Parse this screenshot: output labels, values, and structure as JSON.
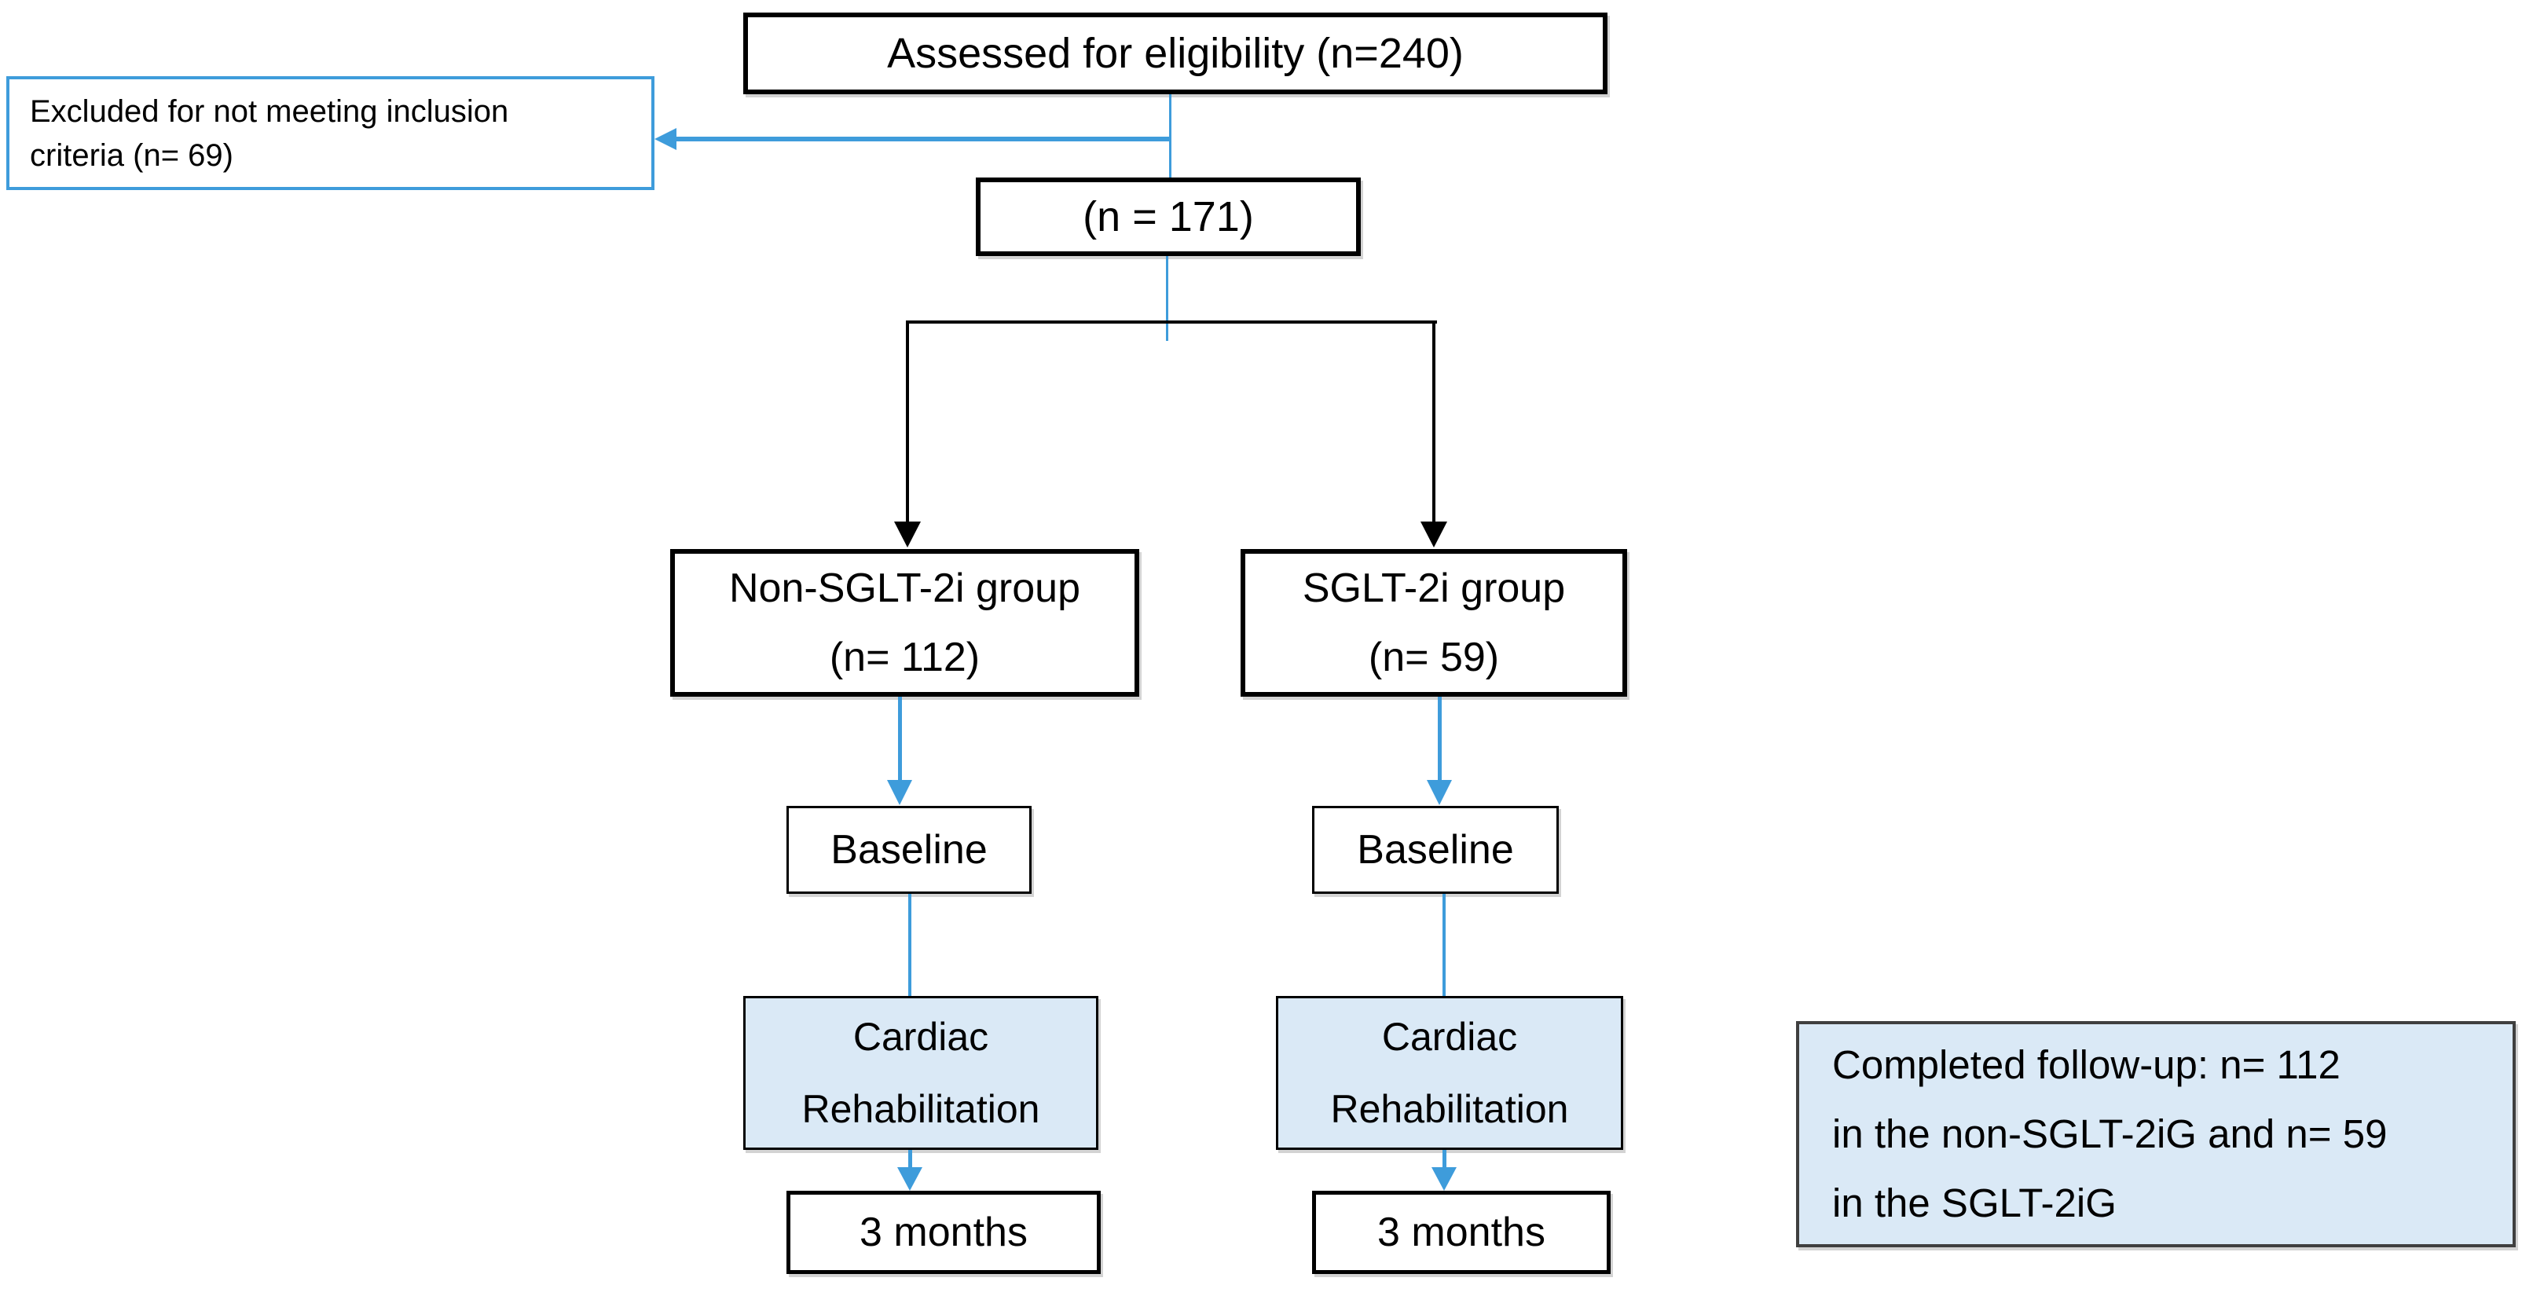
{
  "colors": {
    "accent_blue": "#3E9CDB",
    "light_blue_fill": "#DAE9F6",
    "box_border": "#000000",
    "note_border": "#3F3F3F"
  },
  "nodes": {
    "assessed": {
      "label": "Assessed for eligibility (n=240)"
    },
    "excluded": {
      "line1": "Excluded for not meeting inclusion",
      "line2": "criteria (n= 69)"
    },
    "eligible": {
      "label": "(n = 171)"
    },
    "non_sglt_group": {
      "line1": "Non-SGLT-2i group",
      "line2": "(n= 112)"
    },
    "sglt_group": {
      "line1": "SGLT-2i group",
      "line2": "(n= 59)"
    },
    "baseline_left": {
      "label": "Baseline"
    },
    "baseline_right": {
      "label": "Baseline"
    },
    "cardiac_left": {
      "line1": "Cardiac",
      "line2": "Rehabilitation"
    },
    "cardiac_right": {
      "line1": "Cardiac",
      "line2": "Rehabilitation"
    },
    "months_left": {
      "label": "3 months"
    },
    "months_right": {
      "label": "3 months"
    },
    "note": {
      "line1": "Completed follow-up: n= 112",
      "line2": "in the non-SGLT-2iG and n= 59",
      "line3": "in the SGLT-2iG"
    }
  }
}
